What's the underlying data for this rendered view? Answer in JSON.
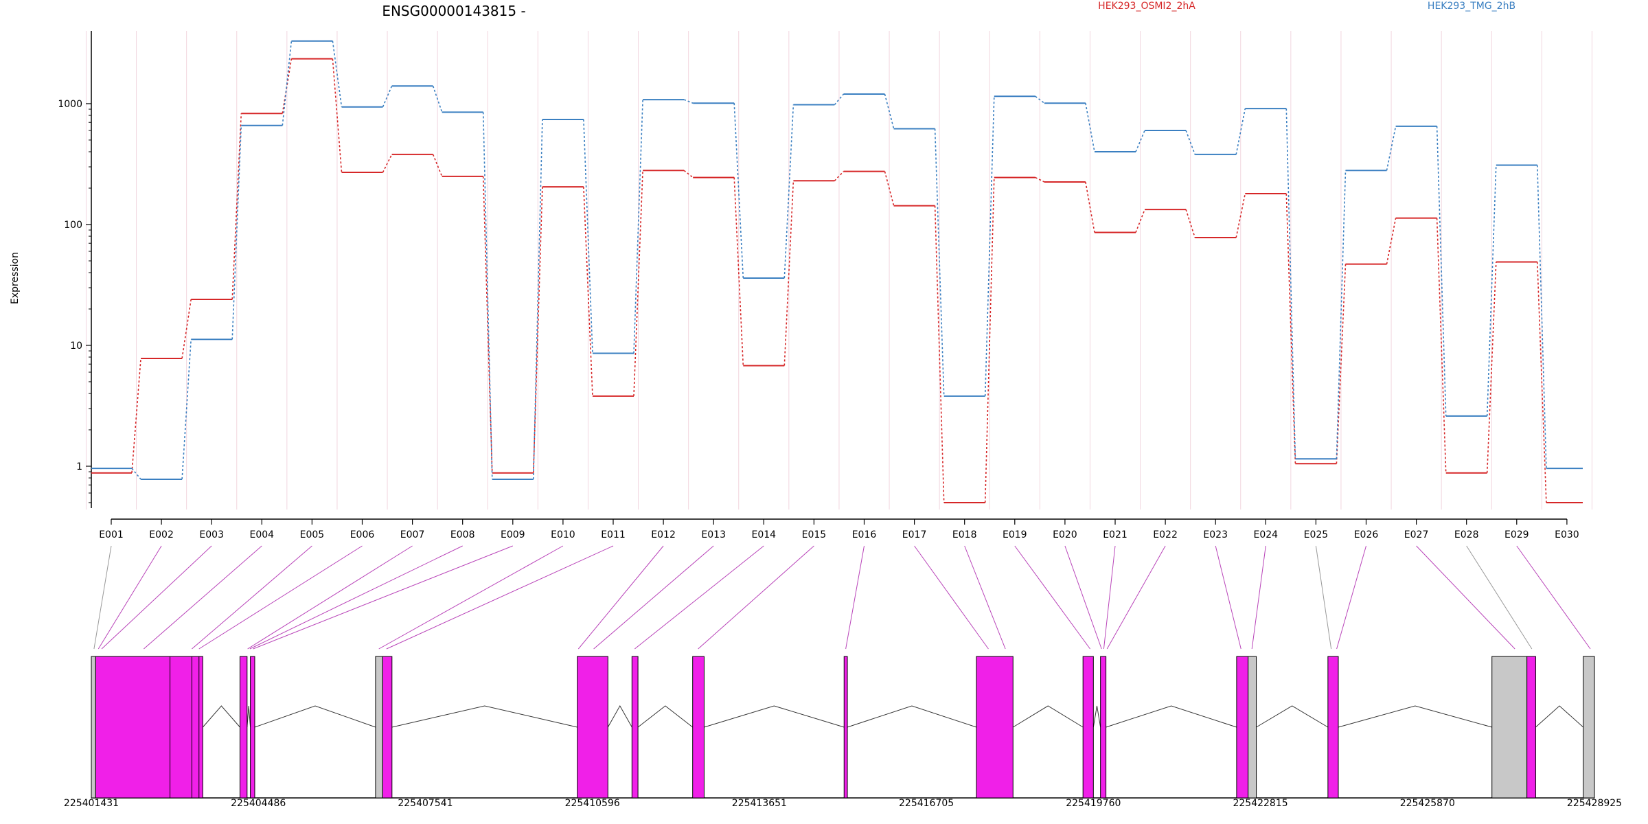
{
  "chart_data": {
    "type": "line",
    "title": "ENSG00000143815 -",
    "ylabel": "Expression",
    "yscale": "log",
    "ylim": [
      0.45,
      4000
    ],
    "yticks": [
      1,
      10,
      100,
      1000
    ],
    "ytick_labels": [
      "1",
      "10",
      "100",
      "1000"
    ],
    "grid": "vertical",
    "legend_position": "top-right",
    "categories": [
      "E001",
      "E002",
      "E003",
      "E004",
      "E005",
      "E006",
      "E007",
      "E008",
      "E009",
      "E010",
      "E011",
      "E012",
      "E013",
      "E014",
      "E015",
      "E016",
      "E017",
      "E018",
      "E019",
      "E020",
      "E021",
      "E022",
      "E023",
      "E024",
      "E025",
      "E026",
      "E027",
      "E028",
      "E029",
      "E030"
    ],
    "series": [
      {
        "name": "HEK293_OSMI2_2hA",
        "color": "#d62728",
        "values": [
          0.88,
          7.8,
          24,
          830,
          2350,
          270,
          380,
          250,
          0.88,
          205,
          3.8,
          280,
          245,
          6.8,
          230,
          275,
          143,
          0.5,
          245,
          225,
          86,
          133,
          78,
          180,
          1.05,
          47,
          113,
          0.88,
          49,
          0.5
        ]
      },
      {
        "name": "HEK293_TMG_2hB",
        "color": "#3a7fc1",
        "values": [
          0.96,
          0.78,
          11.2,
          660,
          3300,
          940,
          1400,
          850,
          0.78,
          740,
          8.6,
          1080,
          1010,
          36,
          980,
          1200,
          620,
          3.8,
          1150,
          1010,
          400,
          600,
          380,
          910,
          1.15,
          280,
          650,
          2.6,
          310,
          0.96
        ]
      }
    ],
    "gene_model": {
      "coordinate_ticks": [
        "225401431",
        "225404486",
        "225407541",
        "225410596",
        "225413651",
        "225416705",
        "225419760",
        "225422815",
        "225425870",
        "225428925"
      ],
      "coord_start": 225401431,
      "coord_end": 225428925,
      "exon_color": "#f020e8",
      "nonexon_color": "#c8c8c8",
      "features": [
        {
          "start": 225401431,
          "end": 225401510,
          "kind": "utr"
        },
        {
          "start": 225401510,
          "end": 225403470,
          "kind": "exon"
        },
        {
          "start": 225404150,
          "end": 225404280,
          "kind": "exon"
        },
        {
          "start": 225404340,
          "end": 225404420,
          "kind": "exon"
        },
        {
          "start": 225406630,
          "end": 225406760,
          "kind": "utr"
        },
        {
          "start": 225406760,
          "end": 225406930,
          "kind": "exon"
        },
        {
          "start": 225410320,
          "end": 225410880,
          "kind": "exon"
        },
        {
          "start": 225411320,
          "end": 225411430,
          "kind": "exon"
        },
        {
          "start": 225412430,
          "end": 225412640,
          "kind": "exon"
        },
        {
          "start": 225415200,
          "end": 225415260,
          "kind": "exon"
        },
        {
          "start": 225417620,
          "end": 225418290,
          "kind": "exon"
        },
        {
          "start": 225419570,
          "end": 225419760,
          "kind": "exon"
        },
        {
          "start": 225419890,
          "end": 225419990,
          "kind": "exon"
        },
        {
          "start": 225422380,
          "end": 225422590,
          "kind": "exon"
        },
        {
          "start": 225422590,
          "end": 225422740,
          "kind": "utr"
        },
        {
          "start": 225424050,
          "end": 225424240,
          "kind": "exon"
        },
        {
          "start": 225427050,
          "end": 225427690,
          "kind": "utr"
        },
        {
          "start": 225427690,
          "end": 225427850,
          "kind": "exon"
        },
        {
          "start": 225428720,
          "end": 225428925,
          "kind": "utr"
        }
      ],
      "connector_targets": [
        225401480,
        225401560,
        225401620,
        225402390,
        225403270,
        225403400,
        225404290,
        225404330,
        225404390,
        225406690,
        225406830,
        225410340,
        225410620,
        225411370,
        225412530,
        225415230,
        225417840,
        225418150,
        225419700,
        225419910,
        225419950,
        225420010,
        225422460,
        225422660,
        225424110,
        225424210,
        225427470,
        225427780,
        225428850
      ]
    }
  }
}
